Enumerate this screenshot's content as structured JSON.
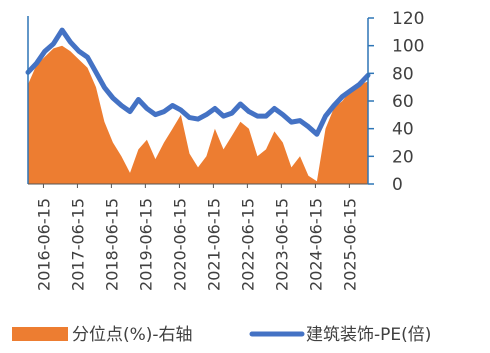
{
  "chart_data": {
    "type": "line",
    "title": "",
    "xlabel": "",
    "ylabel": "",
    "x_tick_labels": [
      "2016-06-15",
      "2017-06-15",
      "2018-06-15",
      "2019-06-15",
      "2020-06-15",
      "2021-06-15",
      "2022-06-15",
      "2023-06-15",
      "2024-06-15",
      "2025-06-15"
    ],
    "left_axis": {
      "min": 0,
      "max": 110,
      "shown": true,
      "tick_labels": false
    },
    "right_axis": {
      "min": 0,
      "max": 120,
      "ticks": [
        "0",
        "20",
        "40",
        "60",
        "80",
        "100",
        "120"
      ]
    },
    "legend_position": "bottom",
    "grid": false,
    "colors": {
      "area": "#ED7D31",
      "line": "#4472C4",
      "axis": "#2E75B6",
      "text": "#404040"
    },
    "series": [
      {
        "name": "分位点(%)-右轴",
        "type": "area",
        "axis": "right",
        "x": [
          "2016-01",
          "2016-04",
          "2016-07",
          "2016-10",
          "2017-01",
          "2017-04",
          "2017-07",
          "2017-10",
          "2018-01",
          "2018-04",
          "2018-07",
          "2018-10",
          "2019-01",
          "2019-04",
          "2019-07",
          "2019-10",
          "2020-01",
          "2020-04",
          "2020-07",
          "2020-10",
          "2021-01",
          "2021-04",
          "2021-07",
          "2021-10",
          "2022-01",
          "2022-04",
          "2022-07",
          "2022-10",
          "2023-01",
          "2023-04",
          "2023-07",
          "2023-10",
          "2024-01",
          "2024-04",
          "2024-07",
          "2024-10",
          "2025-01",
          "2025-04",
          "2025-07",
          "2025-10",
          "2026-01"
        ],
        "values": [
          72,
          86,
          92,
          98,
          100,
          96,
          90,
          84,
          70,
          45,
          30,
          20,
          8,
          25,
          32,
          18,
          30,
          40,
          50,
          22,
          12,
          20,
          40,
          25,
          35,
          45,
          40,
          20,
          25,
          38,
          30,
          12,
          20,
          6,
          2,
          40,
          55,
          60,
          68,
          72,
          74
        ]
      },
      {
        "name": "建筑装饰-PE(倍)",
        "type": "line",
        "axis": "left",
        "x": [
          "2016-01",
          "2016-04",
          "2016-07",
          "2016-10",
          "2017-01",
          "2017-04",
          "2017-07",
          "2017-10",
          "2018-01",
          "2018-04",
          "2018-07",
          "2018-10",
          "2019-01",
          "2019-04",
          "2019-07",
          "2019-10",
          "2020-01",
          "2020-04",
          "2020-07",
          "2020-10",
          "2021-01",
          "2021-04",
          "2021-07",
          "2021-10",
          "2022-01",
          "2022-04",
          "2022-07",
          "2022-10",
          "2023-01",
          "2023-04",
          "2023-07",
          "2023-10",
          "2024-01",
          "2024-04",
          "2024-07",
          "2024-10",
          "2025-01",
          "2025-04",
          "2025-07",
          "2025-10",
          "2026-01"
        ],
        "values": [
          74,
          80,
          88,
          93,
          102,
          94,
          88,
          84,
          74,
          64,
          57,
          52,
          48,
          56,
          50,
          46,
          48,
          52,
          49,
          44,
          43,
          46,
          50,
          45,
          47,
          53,
          48,
          45,
          45,
          50,
          46,
          41,
          42,
          38,
          33,
          45,
          52,
          58,
          62,
          66,
          72
        ]
      }
    ]
  }
}
